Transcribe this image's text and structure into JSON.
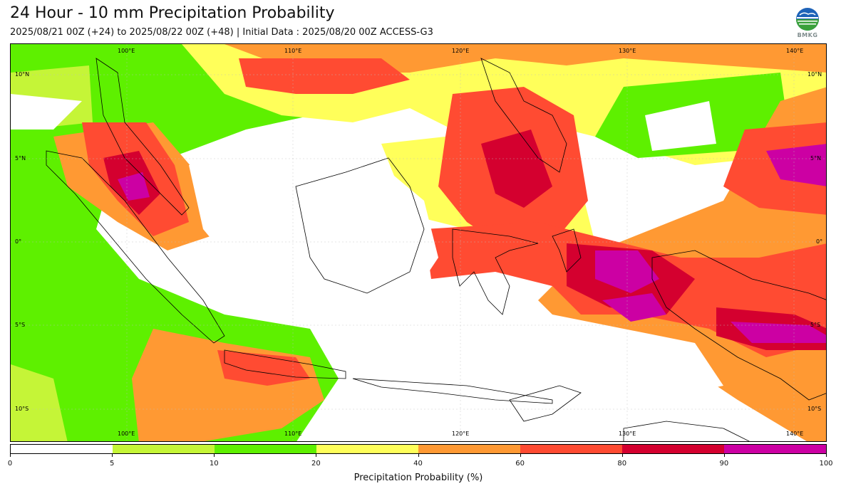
{
  "header": {
    "title": "24 Hour - 10 mm Precipitation Probability",
    "subtitle": "2025/08/21 00Z (+24) to 2025/08/22 00Z (+48) | Initial Data : 2025/08/20 00Z ACCESS-G3",
    "logo_text": "BMKG"
  },
  "map": {
    "lon_labels": [
      "100°E",
      "110°E",
      "120°E",
      "130°E",
      "140°E"
    ],
    "lat_labels": [
      "10°N",
      "5°N",
      "0°",
      "5°S",
      "10°S"
    ],
    "colors": {
      "0-5": "#ffffff",
      "5-10": "#c5f537",
      "10-20": "#5ef000",
      "20-40": "#ffff5a",
      "40-60": "#ff9933",
      "60-80": "#ff4b32",
      "80-90": "#d4002f",
      "90-100": "#cc00a3",
      "coastline": "#000000"
    }
  },
  "colorbar": {
    "tick_labels": [
      "0",
      "5",
      "10",
      "20",
      "40",
      "60",
      "80",
      "90",
      "100"
    ],
    "colors": [
      "#ffffff",
      "#c5f537",
      "#5ef000",
      "#ffff5a",
      "#ff9933",
      "#ff4b32",
      "#d4002f",
      "#cc00a3"
    ],
    "label": "Precipitation Probability (%)"
  }
}
